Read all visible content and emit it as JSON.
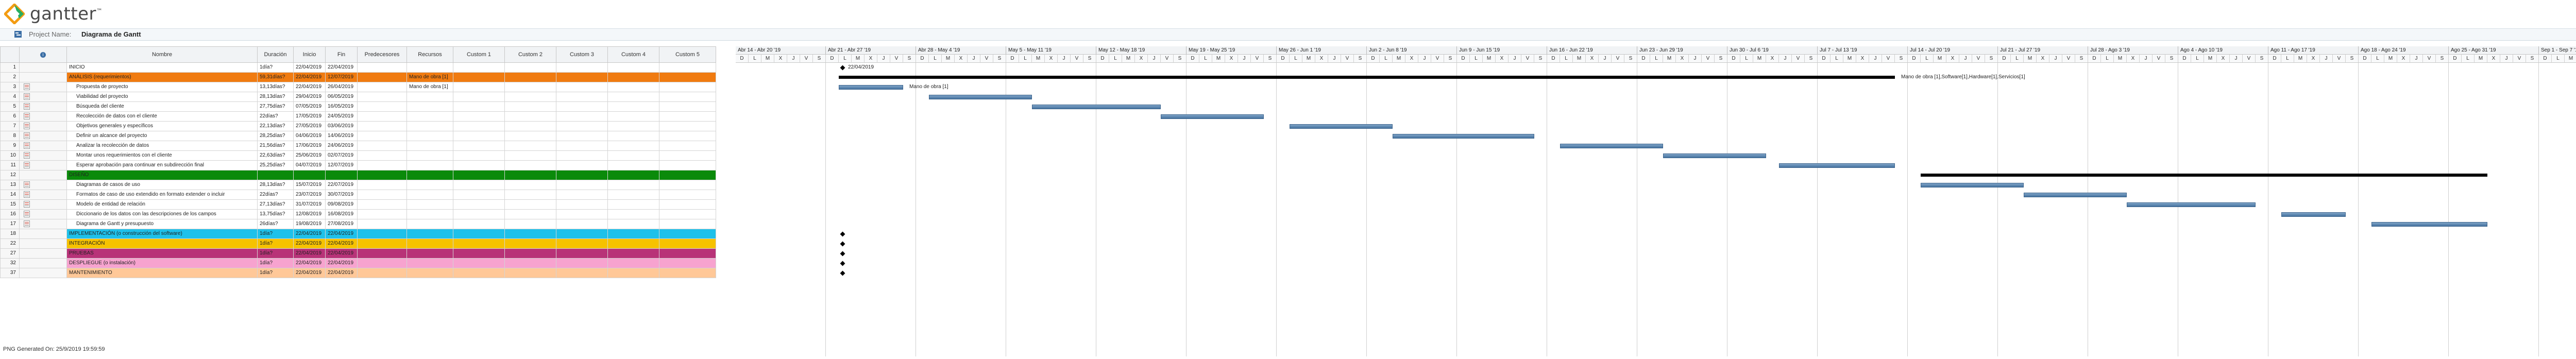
{
  "app": {
    "brand": "gantter",
    "trademark": "™"
  },
  "project": {
    "label": "Project Name:",
    "name": "Diagrama de Gantt"
  },
  "columns": [
    "",
    "",
    "Nombre",
    "Duración",
    "Inicio",
    "Fin",
    "Predecesores",
    "Recursos",
    "Custom 1",
    "Custom 2",
    "Custom 3",
    "Custom 4",
    "Custom 5"
  ],
  "weeks": [
    "Abr 14 - Abr 20 '19",
    "Abr 21 - Abr 27 '19",
    "Abr 28 - May 4 '19",
    "May 5 - May 11 '19",
    "May 12 - May 18 '19",
    "May 19 - May 25 '19",
    "May 26 - Jun 1 '19",
    "Jun 2 - Jun 8 '19",
    "Jun 9 - Jun 15 '19",
    "Jun 16 - Jun 22 '19",
    "Jun 23 - Jun 29 '19",
    "Jun 30 - Jul 6 '19",
    "Jul 7 - Jul 13 '19",
    "Jul 14 - Jul 20 '19",
    "Jul 21 - Jul 27 '19",
    "Jul 28 - Ago 3 '19",
    "Ago 4 - Ago 10 '19",
    "Ago 11 - Ago 17 '19",
    "Ago 18 - Ago 24 '19",
    "Ago 25 - Ago 31 '19",
    "Sep 1 - Sep 7 '19"
  ],
  "day_letters": [
    "D",
    "L",
    "M",
    "X",
    "J",
    "V",
    "S"
  ],
  "rows": [
    {
      "num": "1",
      "name": "INICIO",
      "dur": "1día?",
      "start": "22/04/2019",
      "end": "22/04/2019",
      "pred": "",
      "res": "",
      "color": "#ffffff",
      "indent": false,
      "icon": false
    },
    {
      "num": "2",
      "name": "ANÁLISIS (requerimientos)",
      "dur": "59,31días?",
      "start": "22/04/2019",
      "end": "12/07/2019",
      "pred": "",
      "res": "Mano de obra [1]",
      "color": "#f07b10",
      "indent": false,
      "icon": false
    },
    {
      "num": "3",
      "name": "Propuesta de proyecto",
      "dur": "13,13días?",
      "start": "22/04/2019",
      "end": "26/04/2019",
      "pred": "",
      "res": "Mano de obra [1]",
      "color": "#ffffff",
      "indent": true,
      "icon": true
    },
    {
      "num": "4",
      "name": "Viabilidad del proyecto",
      "dur": "28,13días?",
      "start": "29/04/2019",
      "end": "06/05/2019",
      "pred": "",
      "res": "",
      "color": "#ffffff",
      "indent": true,
      "icon": true
    },
    {
      "num": "5",
      "name": "Búsqueda del cliente",
      "dur": "27,75días?",
      "start": "07/05/2019",
      "end": "16/05/2019",
      "pred": "",
      "res": "",
      "color": "#ffffff",
      "indent": true,
      "icon": true
    },
    {
      "num": "6",
      "name": "Recolección de datos con el cliente",
      "dur": "22días?",
      "start": "17/05/2019",
      "end": "24/05/2019",
      "pred": "",
      "res": "",
      "color": "#ffffff",
      "indent": true,
      "icon": true
    },
    {
      "num": "7",
      "name": "Objetivos generales y específicos",
      "dur": "22,13días?",
      "start": "27/05/2019",
      "end": "03/06/2019",
      "pred": "",
      "res": "",
      "color": "#ffffff",
      "indent": true,
      "icon": true
    },
    {
      "num": "8",
      "name": "Definir un alcance del proyecto",
      "dur": "28,25días?",
      "start": "04/06/2019",
      "end": "14/06/2019",
      "pred": "",
      "res": "",
      "color": "#ffffff",
      "indent": true,
      "icon": true
    },
    {
      "num": "9",
      "name": "Analizar la recolección de datos",
      "dur": "21,56días?",
      "start": "17/06/2019",
      "end": "24/06/2019",
      "pred": "",
      "res": "",
      "color": "#ffffff",
      "indent": true,
      "icon": true
    },
    {
      "num": "10",
      "name": "Montar unos requerimientos con el cliente",
      "dur": "22,63días?",
      "start": "25/06/2019",
      "end": "02/07/2019",
      "pred": "",
      "res": "",
      "color": "#ffffff",
      "indent": true,
      "icon": true
    },
    {
      "num": "11",
      "name": "Esperar aprobación para continuar en subdirección final",
      "dur": "25,25días?",
      "start": "04/07/2019",
      "end": "12/07/2019",
      "pred": "",
      "res": "",
      "color": "#ffffff",
      "indent": true,
      "icon": true
    },
    {
      "num": "12",
      "name": "DISEÑO",
      "dur": "",
      "start": "",
      "end": "",
      "pred": "",
      "res": "",
      "color": "#0a8a0a",
      "indent": false,
      "icon": false
    },
    {
      "num": "13",
      "name": "Diagramas de casos de uso",
      "dur": "28,13días?",
      "start": "15/07/2019",
      "end": "22/07/2019",
      "pred": "",
      "res": "",
      "color": "#ffffff",
      "indent": true,
      "icon": true
    },
    {
      "num": "14",
      "name": "Formatos de caso de uso extendido en formato extender o incluir",
      "dur": "22días?",
      "start": "23/07/2019",
      "end": "30/07/2019",
      "pred": "",
      "res": "",
      "color": "#ffffff",
      "indent": true,
      "icon": true
    },
    {
      "num": "15",
      "name": "Modelo de entidad de relación",
      "dur": "27,13días?",
      "start": "31/07/2019",
      "end": "09/08/2019",
      "pred": "",
      "res": "",
      "color": "#ffffff",
      "indent": true,
      "icon": true
    },
    {
      "num": "16",
      "name": "Diccionario de los datos con las descripciones de los campos",
      "dur": "13,75días?",
      "start": "12/08/2019",
      "end": "16/08/2019",
      "pred": "",
      "res": "",
      "color": "#ffffff",
      "indent": true,
      "icon": true
    },
    {
      "num": "17",
      "name": "Diagrama de Gantt y presupuesto",
      "dur": "26días?",
      "start": "19/08/2019",
      "end": "27/08/2019",
      "pred": "",
      "res": "",
      "color": "#ffffff",
      "indent": true,
      "icon": true
    },
    {
      "num": "18",
      "name": "IMPLEMENTACIÓN (o construcción del software)",
      "dur": "1día?",
      "start": "22/04/2019",
      "end": "22/04/2019",
      "pred": "",
      "res": "",
      "color": "#1ec1ea",
      "indent": false,
      "icon": false
    },
    {
      "num": "22",
      "name": "INTEGRACIÓN",
      "dur": "1día?",
      "start": "22/04/2019",
      "end": "22/04/2019",
      "pred": "",
      "res": "",
      "color": "#f6c200",
      "indent": false,
      "icon": false
    },
    {
      "num": "27",
      "name": "PRUEBAS",
      "dur": "1día?",
      "start": "22/04/2019",
      "end": "22/04/2019",
      "pred": "",
      "res": "",
      "color": "#b83278",
      "indent": false,
      "icon": false
    },
    {
      "num": "32",
      "name": "DESPLIEGUE (o instalación)",
      "dur": "1día?",
      "start": "22/04/2019",
      "end": "22/04/2019",
      "pred": "",
      "res": "",
      "color": "#f7a3cf",
      "indent": false,
      "icon": false
    },
    {
      "num": "37",
      "name": "MANTENIMIENTO",
      "dur": "1día?",
      "start": "22/04/2019",
      "end": "22/04/2019",
      "pred": "",
      "res": "",
      "color": "#ffc898",
      "indent": false,
      "icon": false
    }
  ],
  "timeline_labels": {
    "milestone_date": "22/04/2019",
    "summary_label": "Mano de obra [1],Software[1],Hardware[1],Servicios[1]",
    "task_label": "Mano de obra [1]"
  },
  "footer": "PNG Generated On: 25/9/2019 19:59:59"
}
